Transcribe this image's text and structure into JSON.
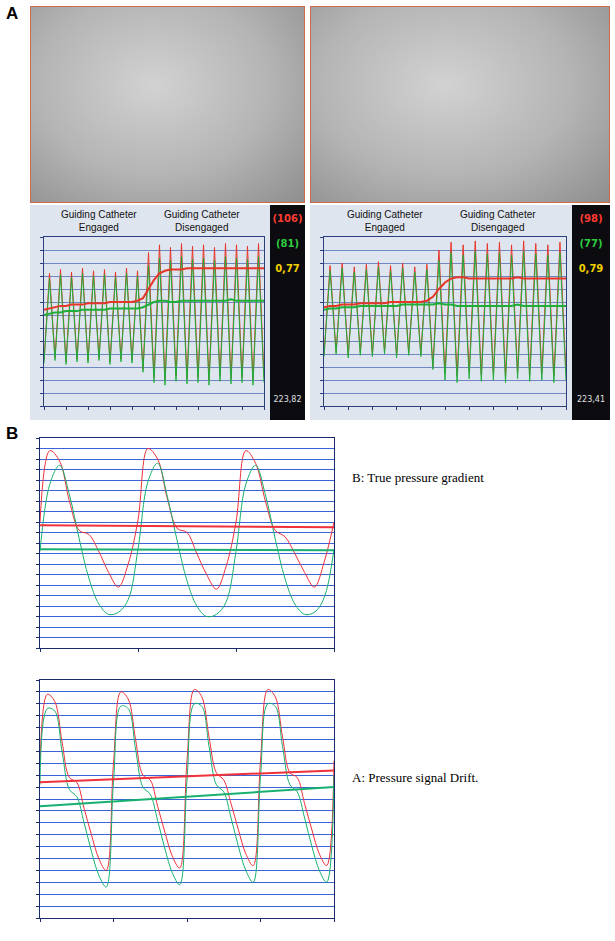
{
  "panel_labels": [
    "A",
    "B"
  ],
  "chart_data": [
    {
      "type": "line",
      "x": [
        0,
        0.5,
        1,
        1.5,
        2,
        2.5,
        3,
        3.5,
        4,
        4.5,
        5,
        5.5,
        6,
        6.5,
        7,
        7.5,
        8,
        8.5,
        9,
        9.5,
        10,
        10.5,
        11,
        11.5,
        12,
        12.5,
        13,
        13.5,
        14,
        14.5,
        15,
        15.5,
        16,
        16.5,
        17,
        17.5,
        18,
        18.5,
        19,
        19.5,
        20
      ],
      "xlim": [
        0,
        20
      ],
      "xticks": [
        0,
        2,
        4,
        6,
        8,
        10,
        12,
        14,
        16,
        18,
        20
      ],
      "ylim": [
        0,
        130
      ],
      "yticks": [
        0,
        10,
        20,
        30,
        40,
        50,
        60,
        70,
        80,
        90,
        100,
        110,
        120,
        130
      ],
      "grid": "y",
      "tick_labels": false,
      "annotations": [
        {
          "text": "Guiding Catheter Engaged"
        },
        {
          "text": "Guiding Catheter Disengaged"
        }
      ],
      "side_labels": [
        {
          "text": "(106)",
          "color": "#ff3b30"
        },
        {
          "text": "(81)",
          "color": "#2ecc40"
        },
        {
          "text": "0,77",
          "color": "#f0d000"
        },
        {
          "text": "223,82",
          "color": "#e0e0e0"
        }
      ],
      "series": [
        {
          "color": "#e8352a",
          "line_style": "thin",
          "values": [
            35,
            102,
            37,
            105,
            34,
            103,
            36,
            106,
            35,
            104,
            37,
            105,
            34,
            103,
            36,
            106,
            35,
            104,
            28,
            118,
            22,
            124,
            20,
            122,
            23,
            125,
            21,
            123,
            22,
            124,
            20,
            122,
            23,
            125,
            21,
            124,
            22,
            123,
            20,
            125,
            22
          ]
        },
        {
          "color": "#1fae3a",
          "line_style": "thin",
          "values": [
            33,
            98,
            35,
            101,
            32,
            99,
            34,
            102,
            33,
            100,
            35,
            101,
            32,
            99,
            34,
            102,
            33,
            100,
            26,
            108,
            18,
            114,
            16,
            112,
            19,
            115,
            17,
            113,
            18,
            114,
            16,
            112,
            19,
            115,
            17,
            114,
            18,
            113,
            16,
            115,
            18
          ]
        },
        {
          "color": "#e8352a",
          "line_style": "bold",
          "values": [
            74,
            75,
            76,
            77,
            77,
            78,
            78,
            78,
            79,
            79,
            79,
            79,
            80,
            80,
            80,
            80,
            80,
            81,
            83,
            90,
            97,
            102,
            104,
            105,
            105,
            105,
            106,
            106,
            106,
            106,
            106,
            106,
            106,
            106,
            106,
            106,
            106,
            106,
            106,
            106,
            106
          ]
        },
        {
          "color": "#1fae3a",
          "line_style": "bold",
          "values": [
            70,
            71,
            72,
            72,
            73,
            73,
            73,
            74,
            74,
            74,
            74,
            74,
            75,
            75,
            75,
            75,
            75,
            75,
            76,
            78,
            80,
            81,
            81,
            80,
            80,
            81,
            81,
            81,
            81,
            81,
            81,
            81,
            81,
            81,
            82,
            81,
            81,
            81,
            81,
            81,
            81
          ]
        }
      ]
    },
    {
      "type": "line",
      "x": [
        0,
        0.5,
        1,
        1.5,
        2,
        2.5,
        3,
        3.5,
        4,
        4.5,
        5,
        5.5,
        6,
        6.5,
        7,
        7.5,
        8,
        8.5,
        9,
        9.5,
        10,
        10.5,
        11,
        11.5,
        12,
        12.5,
        13,
        13.5,
        14,
        14.5,
        15,
        15.5,
        16,
        16.5,
        17,
        17.5,
        18,
        18.5,
        19,
        19.5,
        20
      ],
      "xlim": [
        0,
        20
      ],
      "xticks": [
        0,
        2,
        4,
        6,
        8,
        10,
        12,
        14,
        16,
        18,
        20
      ],
      "ylim": [
        0,
        130
      ],
      "yticks": [
        0,
        10,
        20,
        30,
        40,
        50,
        60,
        70,
        80,
        90,
        100,
        110,
        120,
        130
      ],
      "grid": "y",
      "tick_labels": false,
      "annotations": [
        {
          "text": "Guiding Catheter Engaged"
        },
        {
          "text": "Guiding Catheter Disengaged"
        }
      ],
      "side_labels": [
        {
          "text": "(98)",
          "color": "#ff3b30"
        },
        {
          "text": "(77)",
          "color": "#2ecc40"
        },
        {
          "text": "0,79",
          "color": "#f0d000"
        },
        {
          "text": "223,41",
          "color": "#e0e0e0"
        }
      ],
      "series": [
        {
          "color": "#e8352a",
          "line_style": "thin",
          "values": [
            40,
            108,
            42,
            110,
            39,
            107,
            41,
            109,
            40,
            111,
            42,
            108,
            39,
            110,
            41,
            107,
            40,
            109,
            30,
            120,
            25,
            126,
            23,
            124,
            26,
            127,
            24,
            125,
            25,
            126,
            23,
            124,
            26,
            127,
            24,
            125,
            25,
            124,
            23,
            126,
            25
          ]
        },
        {
          "color": "#1fae3a",
          "line_style": "thin",
          "values": [
            38,
            104,
            40,
            106,
            37,
            103,
            39,
            105,
            38,
            107,
            40,
            104,
            37,
            106,
            39,
            103,
            38,
            105,
            28,
            112,
            20,
            118,
            18,
            116,
            21,
            119,
            19,
            117,
            20,
            118,
            18,
            116,
            21,
            119,
            19,
            117,
            20,
            116,
            18,
            118,
            20
          ]
        },
        {
          "color": "#e8352a",
          "line_style": "bold",
          "values": [
            76,
            77,
            77,
            78,
            78,
            78,
            79,
            79,
            79,
            79,
            79,
            80,
            80,
            80,
            80,
            80,
            80,
            81,
            84,
            90,
            95,
            98,
            99,
            99,
            98,
            98,
            98,
            98,
            98,
            98,
            98,
            98,
            99,
            98,
            98,
            98,
            98,
            98,
            98,
            98,
            98
          ]
        },
        {
          "color": "#1fae3a",
          "line_style": "bold",
          "values": [
            74,
            75,
            75,
            76,
            76,
            76,
            77,
            77,
            77,
            77,
            77,
            77,
            77,
            78,
            78,
            78,
            78,
            78,
            78,
            79,
            78,
            78,
            77,
            77,
            77,
            77,
            77,
            77,
            77,
            77,
            77,
            77,
            78,
            77,
            77,
            77,
            77,
            77,
            77,
            77,
            77
          ]
        }
      ]
    },
    {
      "type": "line",
      "x": [
        0,
        0.1,
        0.2,
        0.3,
        0.4,
        0.5,
        0.6,
        0.7,
        0.8,
        0.9,
        1,
        1.1,
        1.2,
        1.3,
        1.4,
        1.5,
        1.6,
        1.7,
        1.8,
        1.9,
        2,
        2.1,
        2.2,
        2.3,
        2.4,
        2.5,
        2.6,
        2.7,
        2.8,
        2.9,
        3
      ],
      "xlim": [
        0,
        3
      ],
      "xticks": [
        0,
        1,
        2,
        3
      ],
      "ylim": [
        40,
        140
      ],
      "yticks": [
        40,
        45,
        50,
        55,
        60,
        65,
        70,
        75,
        80,
        85,
        90,
        95,
        100,
        105,
        110,
        115,
        120,
        125,
        130,
        135,
        140
      ],
      "grid": "y",
      "tick_labels": false,
      "annotations": [
        {
          "text": "B: True pressure gradient"
        }
      ],
      "series": [
        {
          "color": "#f0303a",
          "line_style": "thin",
          "values": [
            100,
            134,
            129,
            110,
            96,
            94,
            86,
            76,
            69,
            80,
            101,
            135,
            130,
            111,
            97,
            95,
            85,
            75,
            68,
            79,
            100,
            134,
            128,
            110,
            96,
            93,
            85,
            76,
            69,
            81,
            100
          ]
        },
        {
          "color": "#18b070",
          "line_style": "thin",
          "values": [
            86,
            118,
            127,
            113,
            92,
            73,
            61,
            56,
            57,
            63,
            87,
            119,
            128,
            112,
            91,
            72,
            60,
            55,
            56,
            62,
            86,
            118,
            127,
            113,
            92,
            73,
            61,
            56,
            57,
            64,
            87
          ]
        },
        {
          "color": "#f0303a",
          "line_style": "bold",
          "x": [
            0,
            3
          ],
          "values": [
            98.5,
            97.5
          ]
        },
        {
          "color": "#18b070",
          "line_style": "bold",
          "x": [
            0,
            3
          ],
          "values": [
            87,
            86.5
          ]
        }
      ]
    },
    {
      "type": "line",
      "x": [
        0,
        0.1,
        0.2,
        0.3,
        0.4,
        0.5,
        0.6,
        0.7,
        0.8,
        0.9,
        1,
        1.1,
        1.2,
        1.3,
        1.4,
        1.5,
        1.6,
        1.7,
        1.8,
        1.9,
        2,
        2.1,
        2.2,
        2.3,
        2.4,
        2.5,
        2.6,
        2.7,
        2.8,
        2.9,
        3,
        3.1,
        3.2,
        3.3,
        3.4,
        3.5,
        3.6,
        3.7,
        3.8,
        3.9,
        4
      ],
      "xlim": [
        0,
        4
      ],
      "xticks": [
        0,
        1,
        2,
        3,
        4
      ],
      "ylim": [
        40,
        140
      ],
      "yticks": [
        40,
        45,
        50,
        55,
        60,
        65,
        70,
        75,
        80,
        85,
        90,
        95,
        100,
        105,
        110,
        115,
        120,
        125,
        130,
        135,
        140
      ],
      "grid": "y",
      "tick_labels": false,
      "annotations": [
        {
          "text": "A: Pressure signal Drift."
        }
      ],
      "series": [
        {
          "color": "#f0303a",
          "line_style": "thin",
          "values": [
            104,
            134,
            131,
            114,
            99,
            97,
            86,
            75,
            65,
            60,
            105,
            135,
            132,
            115,
            100,
            98,
            87,
            76,
            66,
            61,
            106,
            136,
            133,
            116,
            101,
            98,
            88,
            77,
            67,
            62,
            106,
            136,
            133,
            116,
            101,
            99,
            88,
            77,
            67,
            62,
            106
          ]
        },
        {
          "color": "#18b070",
          "line_style": "thin",
          "values": [
            96,
            128,
            127,
            110,
            94,
            91,
            80,
            68,
            58,
            53,
            97,
            129,
            128,
            111,
            95,
            92,
            81,
            69,
            59,
            54,
            98,
            130,
            129,
            112,
            96,
            93,
            82,
            70,
            60,
            55,
            99,
            130,
            129,
            112,
            96,
            93,
            82,
            70,
            60,
            55,
            100
          ]
        },
        {
          "color": "#f0303a",
          "line_style": "bold",
          "x": [
            0,
            4
          ],
          "values": [
            97,
            102
          ]
        },
        {
          "color": "#18b070",
          "line_style": "bold",
          "x": [
            0,
            4
          ],
          "values": [
            87,
            95
          ]
        }
      ]
    }
  ]
}
